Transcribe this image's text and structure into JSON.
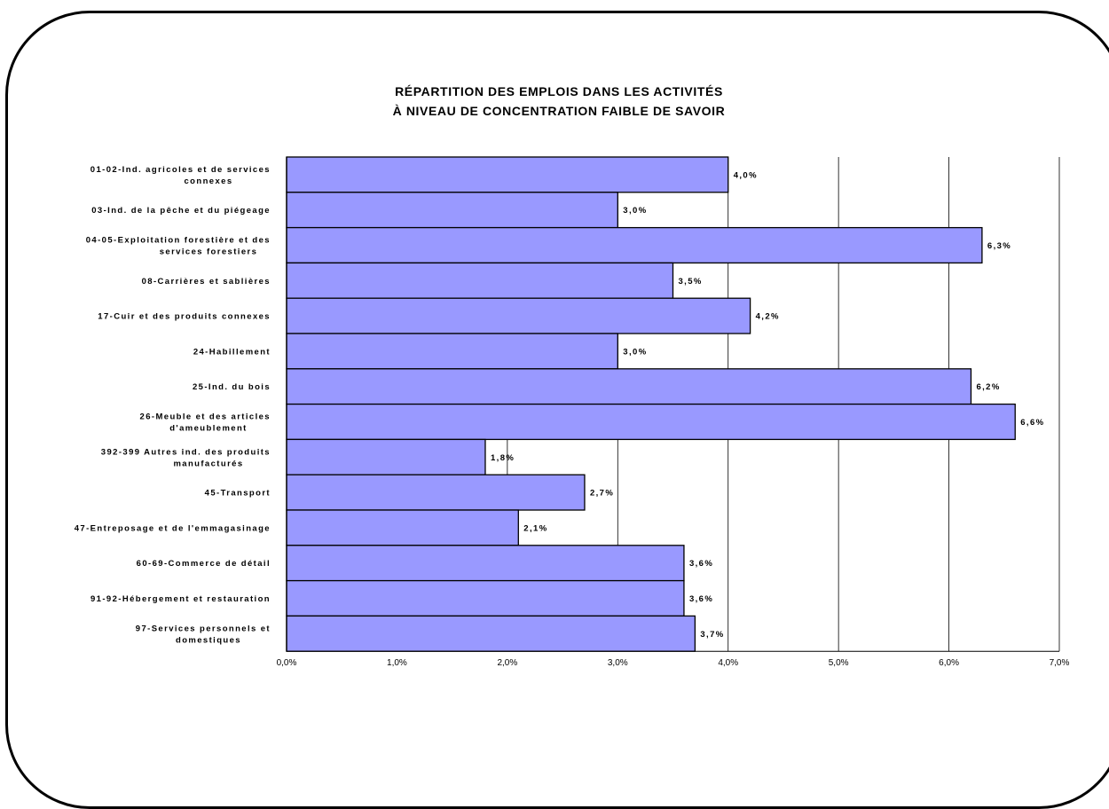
{
  "chart_data": {
    "type": "bar",
    "orientation": "horizontal",
    "title": "RÉPARTITION DES EMPLOIS DANS LES ACTIVITÉS À NIVEAU DE CONCENTRATION FAIBLE DE SAVOIR",
    "title_lines": [
      "RÉPARTITION DES EMPLOIS DANS LES ACTIVITÉS",
      "À NIVEAU DE CONCENTRATION FAIBLE DE SAVOIR"
    ],
    "categories": [
      "01-02-Ind. agricoles et de services connexes",
      "03-Ind. de la pêche et du piégeage",
      "04-05-Exploitation forestière et des services forestiers",
      "08-Carrières et sablières",
      "17-Cuir et des produits connexes",
      "24-Habillement",
      "25-Ind. du bois",
      "26-Meuble et des articles d'ameublement",
      "392-399 Autres ind. des produits manufacturés",
      "45-Transport",
      "47-Entreposage et de l'emmagasinage",
      "60-69-Commerce de détail",
      "91-92-Hébergement et restauration",
      "97-Services personnels et domestiques"
    ],
    "category_lines": [
      [
        "01-02-Ind. agricoles et de services",
        "connexes"
      ],
      [
        "03-Ind. de la pêche et du piégeage"
      ],
      [
        "04-05-Exploitation forestière et des",
        "services forestiers"
      ],
      [
        "08-Carrières et sablières"
      ],
      [
        "17-Cuir et des produits connexes"
      ],
      [
        "24-Habillement"
      ],
      [
        "25-Ind. du bois"
      ],
      [
        "26-Meuble et des articles",
        "d'ameublement"
      ],
      [
        "392-399 Autres ind. des produits",
        "manufacturés"
      ],
      [
        "45-Transport"
      ],
      [
        "47-Entreposage et de l'emmagasinage"
      ],
      [
        "60-69-Commerce de détail"
      ],
      [
        "91-92-Hébergement et restauration"
      ],
      [
        "97-Services personnels et",
        "domestiques"
      ]
    ],
    "values": [
      4.0,
      3.0,
      6.3,
      3.5,
      4.2,
      3.0,
      6.2,
      6.6,
      1.8,
      2.7,
      2.1,
      3.6,
      3.6,
      3.7
    ],
    "data_labels": [
      "4,0%",
      "3,0%",
      "6,3%",
      "3,5%",
      "4,2%",
      "3,0%",
      "6,2%",
      "6,6%",
      "1,8%",
      "2,7%",
      "2,1%",
      "3,6%",
      "3,6%",
      "3,7%"
    ],
    "xlim": [
      0,
      7
    ],
    "x_ticks": [
      0,
      1,
      2,
      3,
      4,
      5,
      6,
      7
    ],
    "x_tick_labels": [
      "0,0%",
      "1,0%",
      "2,0%",
      "3,0%",
      "4,0%",
      "5,0%",
      "6,0%",
      "7,0%"
    ],
    "xlabel": "",
    "ylabel": "",
    "grid": "vertical",
    "legend": "none",
    "colors": {
      "bar_fill": "#9999ff",
      "bar_stroke": "#000000",
      "grid": "#000000"
    }
  }
}
